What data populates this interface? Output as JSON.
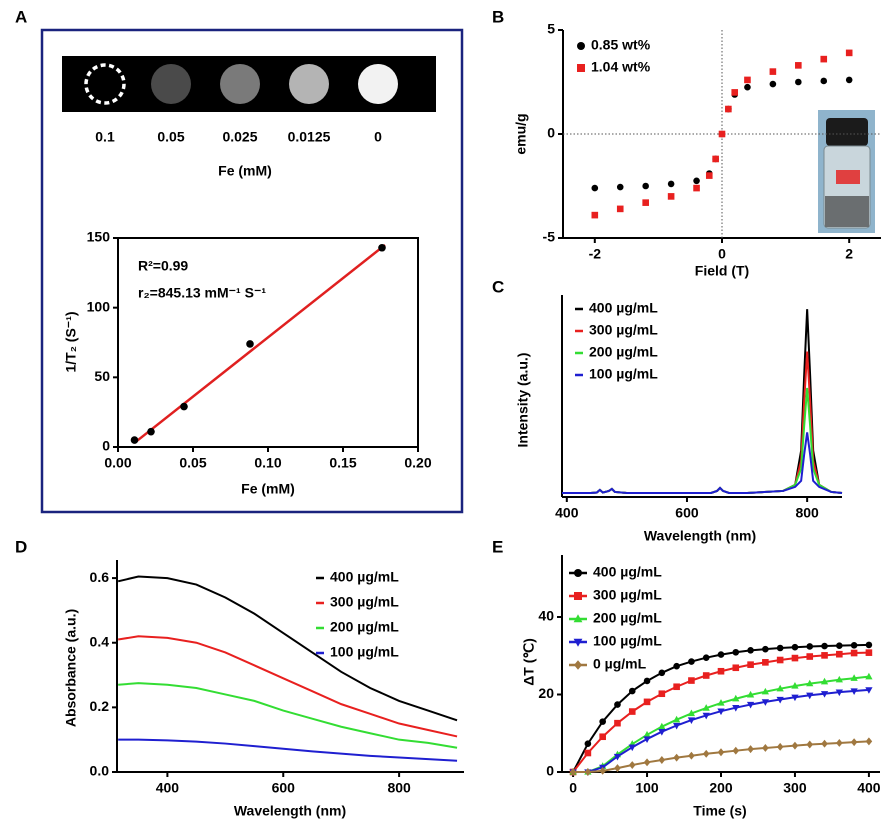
{
  "chart_data": [
    {
      "type": "image",
      "label": "A",
      "categories": [
        "0.1",
        "0.05",
        "0.025",
        "0.0125",
        "0"
      ],
      "xlabel": "Fe (mM)",
      "colors": [
        "#000000",
        "#4a4a4a",
        "#7a7a7a",
        "#b4b4b4",
        "#f2f2f2"
      ],
      "outline_color": "#ffffff"
    },
    {
      "type": "scatter",
      "x": [
        0.011,
        0.022,
        0.044,
        0.088,
        0.176
      ],
      "series": [
        {
          "values": [
            5,
            11,
            29,
            74,
            143
          ],
          "color": "#000000"
        }
      ],
      "fit": {
        "x": [
          0.011,
          0.178
        ],
        "values": [
          3,
          145
        ],
        "color": "#e02020"
      },
      "annotations": [
        "R²=0.99",
        "r₂=845.13 mM⁻¹ S⁻¹"
      ],
      "xlabel": "Fe (mM)",
      "ylabel": "1/T₂ (S⁻¹)",
      "xlim": [
        0,
        0.2
      ],
      "ylim": [
        0,
        150
      ],
      "xticks": [
        {
          "value": 0,
          "label": "0.00"
        },
        0.05,
        {
          "value": 0.1,
          "label": "0.10"
        },
        0.15,
        {
          "value": 0.2,
          "label": "0.20"
        }
      ],
      "yticks": [
        0,
        50,
        100,
        150
      ],
      "frame": true
    },
    {
      "type": "scatter",
      "label": "B",
      "x": [
        -2,
        -1.6,
        -1.2,
        -0.8,
        -0.4,
        -0.2,
        -0.1,
        0,
        0.1,
        0.2,
        0.4,
        0.8,
        1.2,
        1.6,
        2
      ],
      "series": [
        {
          "name": "0.85 wt%",
          "color": "#000000",
          "marker": "circle",
          "values": [
            -2.6,
            -2.55,
            -2.5,
            -2.4,
            -2.25,
            -1.9,
            -1.2,
            0,
            1.2,
            1.9,
            2.25,
            2.4,
            2.5,
            2.55,
            2.6
          ]
        },
        {
          "name": "1.04 wt%",
          "color": "#e8201f",
          "marker": "square",
          "values": [
            -3.9,
            -3.6,
            -3.3,
            -3.0,
            -2.6,
            -2.0,
            -1.2,
            0,
            1.2,
            2.0,
            2.6,
            3.0,
            3.3,
            3.6,
            3.9
          ]
        }
      ],
      "xlabel": "Field (T)",
      "ylabel": "emu/g",
      "xlim": [
        -2.5,
        2.5
      ],
      "ylim": [
        -5,
        5
      ],
      "xticks": [
        -2,
        0,
        2
      ],
      "yticks": [
        -5,
        0,
        5
      ],
      "zero_lines": true,
      "legend": "upper left"
    },
    {
      "type": "line",
      "label": "C",
      "x": [
        392,
        440,
        450,
        455,
        460,
        470,
        475,
        480,
        500,
        600,
        640,
        650,
        655,
        660,
        670,
        700,
        760,
        780,
        790,
        795,
        800,
        805,
        810,
        820,
        840,
        858
      ],
      "series": [
        {
          "name": "400  µg/mL",
          "color": "#000000",
          "values": [
            0.02,
            0.02,
            0.022,
            0.035,
            0.022,
            0.03,
            0.04,
            0.025,
            0.02,
            0.02,
            0.02,
            0.03,
            0.045,
            0.03,
            0.02,
            0.02,
            0.03,
            0.06,
            0.23,
            0.6,
            0.93,
            0.6,
            0.23,
            0.06,
            0.025,
            0.02
          ]
        },
        {
          "name": "300  µg/mL",
          "color": "#e8201f",
          "values": [
            0.02,
            0.02,
            0.022,
            0.035,
            0.022,
            0.03,
            0.04,
            0.025,
            0.02,
            0.02,
            0.02,
            0.03,
            0.045,
            0.03,
            0.02,
            0.02,
            0.03,
            0.06,
            0.18,
            0.47,
            0.72,
            0.47,
            0.18,
            0.06,
            0.025,
            0.02
          ]
        },
        {
          "name": "200  µg/mL",
          "color": "#33dd33",
          "values": [
            0.02,
            0.02,
            0.022,
            0.035,
            0.022,
            0.03,
            0.04,
            0.025,
            0.02,
            0.02,
            0.02,
            0.03,
            0.045,
            0.03,
            0.02,
            0.02,
            0.03,
            0.06,
            0.14,
            0.35,
            0.54,
            0.35,
            0.14,
            0.06,
            0.025,
            0.02
          ]
        },
        {
          "name": "100  µg/mL",
          "color": "#1f1fd0",
          "values": [
            0.02,
            0.02,
            0.022,
            0.035,
            0.022,
            0.03,
            0.04,
            0.025,
            0.02,
            0.02,
            0.02,
            0.03,
            0.045,
            0.03,
            0.02,
            0.02,
            0.03,
            0.05,
            0.08,
            0.21,
            0.32,
            0.21,
            0.08,
            0.05,
            0.025,
            0.02
          ]
        }
      ],
      "xlabel": "Wavelength (nm)",
      "ylabel": "Intensity (a.u.)",
      "xlim": [
        392,
        858
      ],
      "ylim": [
        0,
        1
      ],
      "xticks": [
        400,
        600,
        800
      ],
      "legend": "upper left"
    },
    {
      "type": "line",
      "label": "D",
      "x": [
        315,
        350,
        400,
        450,
        500,
        550,
        600,
        650,
        700,
        750,
        800,
        850,
        900
      ],
      "series": [
        {
          "name": "400 µg/mL",
          "color": "#000000",
          "values": [
            0.59,
            0.605,
            0.6,
            0.58,
            0.54,
            0.49,
            0.43,
            0.37,
            0.31,
            0.26,
            0.22,
            0.19,
            0.16
          ]
        },
        {
          "name": "300 µg/mL",
          "color": "#e8201f",
          "values": [
            0.41,
            0.42,
            0.415,
            0.4,
            0.37,
            0.33,
            0.29,
            0.25,
            0.21,
            0.18,
            0.15,
            0.13,
            0.11
          ]
        },
        {
          "name": "200 µg/mL",
          "color": "#33dd33",
          "values": [
            0.27,
            0.275,
            0.27,
            0.26,
            0.24,
            0.22,
            0.19,
            0.165,
            0.14,
            0.12,
            0.1,
            0.09,
            0.075
          ]
        },
        {
          "name": "100 µg/mL",
          "color": "#1f1fd0",
          "values": [
            0.1,
            0.1,
            0.098,
            0.094,
            0.088,
            0.08,
            0.072,
            0.064,
            0.057,
            0.05,
            0.045,
            0.04,
            0.035
          ]
        }
      ],
      "xlabel": "Wavelength (nm)",
      "ylabel": "Absorbance (a.u.)",
      "xlim": [
        313,
        912
      ],
      "ylim": [
        0,
        0.656
      ],
      "xticks": [
        400,
        600,
        800
      ],
      "yticks": [
        {
          "value": 0,
          "label": "0.0"
        },
        0.2,
        0.4,
        0.6
      ],
      "legend": "upper right"
    },
    {
      "type": "line",
      "label": "E",
      "x": [
        0,
        20,
        40,
        60,
        80,
        100,
        120,
        140,
        160,
        180,
        200,
        220,
        240,
        260,
        280,
        300,
        320,
        340,
        360,
        380,
        400
      ],
      "series": [
        {
          "name": "400  µg/mL",
          "color": "#000000",
          "marker": "circle",
          "values": [
            0,
            7.3,
            13,
            17.4,
            20.9,
            23.5,
            25.6,
            27.3,
            28.5,
            29.5,
            30.3,
            30.9,
            31.4,
            31.7,
            32,
            32.2,
            32.4,
            32.5,
            32.6,
            32.7,
            32.8
          ]
        },
        {
          "name": "300  µg/mL",
          "color": "#e8201f",
          "marker": "square",
          "values": [
            0,
            4.9,
            9.1,
            12.6,
            15.6,
            18.1,
            20.2,
            22,
            23.6,
            24.9,
            26,
            26.9,
            27.7,
            28.3,
            28.9,
            29.4,
            29.8,
            30.1,
            30.4,
            30.7,
            30.8
          ]
        },
        {
          "name": "200  µg/mL",
          "color": "#33dd33",
          "marker": "triangle-up",
          "values": [
            0,
            0,
            1.5,
            4.5,
            7.2,
            9.6,
            11.7,
            13.5,
            15.1,
            16.5,
            17.8,
            18.9,
            19.9,
            20.7,
            21.5,
            22.2,
            22.8,
            23.3,
            23.8,
            24.2,
            24.6
          ]
        },
        {
          "name": "100  µg/mL",
          "color": "#1f1fd0",
          "marker": "triangle-down",
          "values": [
            0,
            0,
            1.2,
            4,
            6.4,
            8.5,
            10.4,
            12,
            13.4,
            14.6,
            15.7,
            16.6,
            17.4,
            18.1,
            18.7,
            19.3,
            19.8,
            20.2,
            20.6,
            20.9,
            21.2
          ]
        },
        {
          "name": "0  µg/mL",
          "color": "#a07840",
          "marker": "diamond",
          "values": [
            0,
            0,
            0.3,
            1,
            1.8,
            2.5,
            3.1,
            3.7,
            4.2,
            4.7,
            5.1,
            5.5,
            5.9,
            6.2,
            6.5,
            6.8,
            7.1,
            7.3,
            7.5,
            7.7,
            7.9
          ]
        }
      ],
      "xlabel": "Time (s)",
      "ylabel": "ΔT (℃)",
      "xlim": [
        -15,
        415
      ],
      "ylim": [
        0,
        56
      ],
      "xticks": [
        0,
        100,
        200,
        300,
        400
      ],
      "yticks": [
        0,
        20,
        40
      ],
      "legend": "upper left"
    }
  ]
}
